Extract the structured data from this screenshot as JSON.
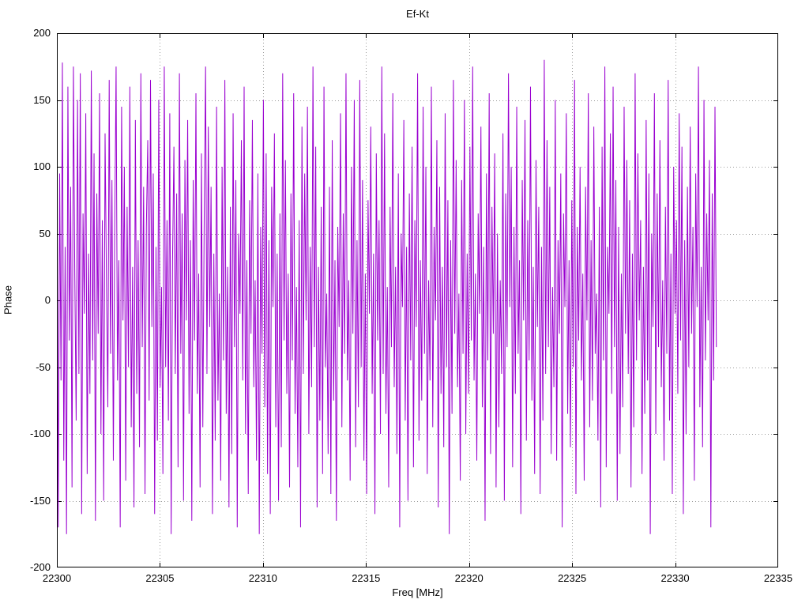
{
  "chart": {
    "title": "Ef-Kt",
    "xlabel": "Freq [MHz]",
    "ylabel": "Phase",
    "x_ticks": [
      22300,
      22305,
      22310,
      22315,
      22320,
      22325,
      22330,
      22335
    ],
    "y_ticks": [
      -200,
      -150,
      -100,
      -50,
      0,
      50,
      100,
      150,
      200
    ],
    "xlim": [
      22300,
      22335
    ],
    "ylim": [
      -200,
      200
    ],
    "line_color": "#9a00d0",
    "grid_color": "#9a9a9a",
    "border_color": "#000000"
  },
  "chart_data": {
    "type": "line",
    "title": "Ef-Kt",
    "xlabel": "Freq [MHz]",
    "ylabel": "Phase",
    "xlim": [
      22300,
      22335
    ],
    "ylim": [
      -200,
      200
    ],
    "grid": true,
    "legend": "none",
    "x_start": 22300,
    "x_end": 22332,
    "series": [
      {
        "name": "Ef-Kt phase",
        "values": [
          130,
          -170,
          95,
          -60,
          178,
          -120,
          40,
          -175,
          160,
          -30,
          85,
          -140,
          175,
          20,
          -90,
          150,
          -55,
          170,
          -160,
          65,
          -10,
          140,
          -130,
          35,
          -70,
          172,
          -45,
          110,
          -165,
          80,
          -25,
          155,
          -100,
          60,
          -150,
          125,
          15,
          -80,
          165,
          -40,
          90,
          -120,
          50,
          175,
          -60,
          30,
          -170,
          145,
          -15,
          100,
          -135,
          70,
          -50,
          160,
          -95,
          25,
          -155,
          135,
          -70,
          45,
          -110,
          170,
          -35,
          85,
          -145,
          55,
          120,
          -75,
          165,
          -20,
          95,
          -160,
          40,
          -105,
          150,
          -65,
          10,
          -130,
          175,
          -50,
          60,
          -90,
          140,
          -175,
          30,
          115,
          -55,
          80,
          -125,
          170,
          -40,
          65,
          -150,
          105,
          -15,
          135,
          -85,
          45,
          -165,
          90,
          -30,
          155,
          -70,
          20,
          -140,
          110,
          -95,
          60,
          175,
          -55,
          130,
          -20,
          85,
          -160,
          35,
          -105,
          145,
          -75,
          5,
          -135,
          100,
          -45,
          165,
          -85,
          25,
          -155,
          70,
          -115,
          140,
          -35,
          90,
          -170,
          50,
          -10,
          120,
          -60,
          160,
          -100,
          30,
          -145,
          75,
          -25,
          135,
          -65,
          15,
          -120,
          95,
          -175,
          55,
          -40,
          150,
          -80,
          110,
          -130,
          45,
          -160,
          85,
          -5,
          125,
          -95,
          35,
          -150,
          65,
          -110,
          170,
          -30,
          105,
          -70,
          20,
          -140,
          80,
          -45,
          155,
          -85,
          10,
          -125,
          60,
          -170,
          130,
          -55,
          95,
          -15,
          145,
          -100,
          40,
          -65,
          175,
          -35,
          115,
          -155,
          25,
          -90,
          70,
          -130,
          160,
          -50,
          5,
          -115,
          85,
          -145,
          120,
          -75,
          30,
          -165,
          55,
          -20,
          140,
          -95,
          65,
          -40,
          170,
          -60,
          15,
          -135,
          100,
          -25,
          150,
          -110,
          45,
          -80,
          165,
          -50,
          90,
          -120,
          20,
          -145,
          75,
          -10,
          130,
          -70,
          35,
          -160,
          110,
          -30,
          60,
          -100,
          175,
          -55,
          125,
          -85,
          10,
          -140,
          70,
          -35,
          155,
          -65,
          25,
          -115,
          95,
          -170,
          50,
          -5,
          135,
          -90,
          40,
          -150,
          80,
          -45,
          115,
          -125,
          60,
          -20,
          170,
          -105,
          30,
          -75,
          145,
          -40,
          100,
          -130,
          15,
          -60,
          160,
          -95,
          55,
          -15,
          120,
          -155,
          85,
          -70,
          25,
          -110,
          140,
          -50,
          75,
          -175,
          45,
          -85,
          165,
          -25,
          105,
          -65,
          5,
          -135,
          90,
          -40,
          150,
          -100,
          35,
          -70,
          115,
          -30,
          175,
          -60,
          20,
          -120,
          65,
          -10,
          130,
          -80,
          40,
          -165,
          95,
          -45,
          155,
          -115,
          70,
          -25,
          110,
          -140,
          50,
          -95,
          15,
          -55,
          125,
          -150,
          80,
          -35,
          170,
          -5,
          100,
          -125,
          55,
          -70,
          145,
          -40,
          30,
          -160,
          90,
          -15,
          135,
          -105,
          60,
          -45,
          160,
          -75,
          25,
          -130,
          105,
          -20,
          70,
          -145,
          40,
          -90,
          180,
          -55,
          120,
          -35,
          85,
          -115,
          10,
          -65,
          150,
          -120,
          45,
          -25,
          95,
          -170,
          65,
          -5,
          140,
          -85,
          30,
          -110,
          75,
          -50,
          165,
          -145,
          55,
          -30,
          100,
          -60,
          20,
          -135,
          85,
          -15,
          155,
          -95,
          45,
          -75,
          130,
          -40,
          5,
          -105,
          70,
          -155,
          115,
          -45,
          175,
          -125,
          40,
          -10,
          125,
          -70,
          160,
          -35,
          90,
          -150,
          55,
          -115,
          20,
          -80,
          145,
          -25,
          105,
          -55,
          75,
          -140,
          35,
          -95,
          170,
          -45,
          110,
          -15,
          60,
          -130,
          25,
          -85,
          135,
          -60,
          95,
          -175,
          50,
          -20,
          155,
          -100,
          80,
          -35,
          120,
          -65,
          15,
          -120,
          70,
          -40,
          165,
          -90,
          35,
          -145,
          100,
          -10,
          60,
          -70,
          140,
          -30,
          115,
          -160,
          45,
          -100,
          85,
          -50,
          130,
          -25,
          55,
          -135,
          95,
          -5,
          175,
          -80,
          25,
          -110,
          150,
          -45,
          65,
          -15,
          105,
          -170,
          80,
          -60,
          145,
          -35
        ]
      }
    ]
  }
}
